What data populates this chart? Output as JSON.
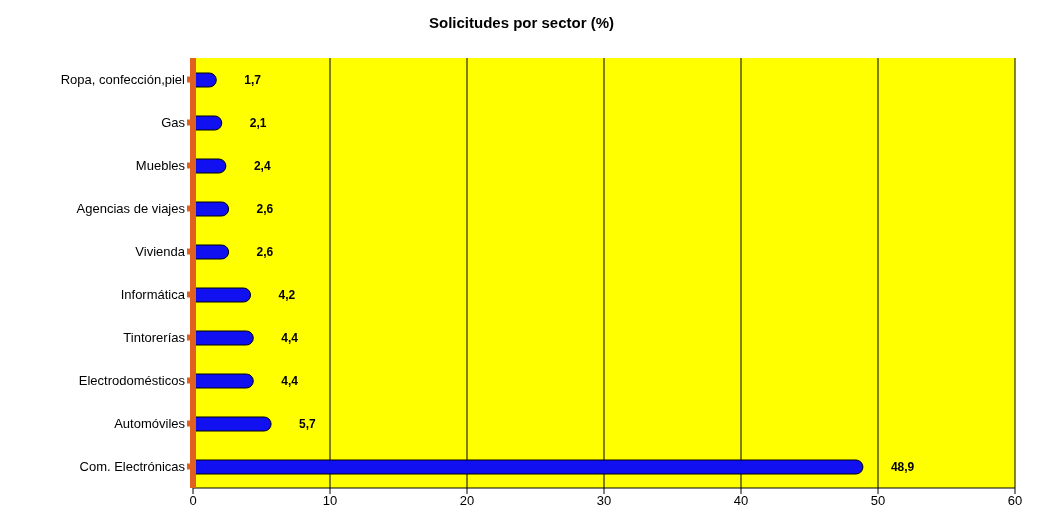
{
  "chart_data": {
    "type": "bar",
    "orientation": "horizontal",
    "title": "Solicitudes por sector (%)",
    "categories": [
      "Ropa, confección,piel",
      "Gas",
      "Muebles",
      "Agencias de viajes",
      "Vivienda",
      "Informática",
      "Tintorerías",
      "Electrodomésticos",
      "Automóviles",
      "Com. Electrónicas"
    ],
    "values": [
      1.7,
      2.1,
      2.4,
      2.6,
      2.6,
      4.2,
      4.4,
      4.4,
      5.7,
      48.9
    ],
    "value_labels": [
      "1,7",
      "2,1",
      "2,4",
      "2,6",
      "2,6",
      "4,2",
      "4,4",
      "4,4",
      "5,7",
      "48,9"
    ],
    "color": "#1010f0",
    "xlim": [
      0,
      60
    ],
    "xticks": [
      0,
      10,
      20,
      30,
      40,
      50,
      60
    ],
    "grid": "x"
  }
}
